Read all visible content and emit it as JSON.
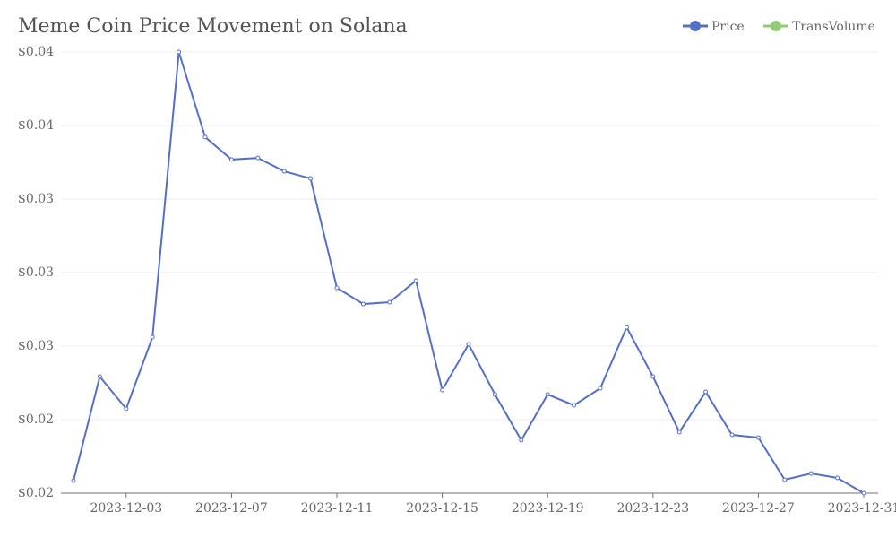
{
  "chart_data": {
    "type": "line",
    "title": "Meme Coin Price Movement on Solana",
    "categories": [
      "2023-12-01",
      "2023-12-02",
      "2023-12-03",
      "2023-12-04",
      "2023-12-05",
      "2023-12-06",
      "2023-12-07",
      "2023-12-08",
      "2023-12-09",
      "2023-12-10",
      "2023-12-11",
      "2023-12-12",
      "2023-12-13",
      "2023-12-14",
      "2023-12-15",
      "2023-12-16",
      "2023-12-17",
      "2023-12-18",
      "2023-12-19",
      "2023-12-20",
      "2023-12-21",
      "2023-12-22",
      "2023-12-23",
      "2023-12-24",
      "2023-12-25",
      "2023-12-26",
      "2023-12-27",
      "2023-12-28",
      "2023-12-29",
      "2023-12-30",
      "2023-12-31"
    ],
    "xticks": [
      "2023-12-03",
      "2023-12-07",
      "2023-12-11",
      "2023-12-15",
      "2023-12-19",
      "2023-12-23",
      "2023-12-27",
      "2023-12-31"
    ],
    "series": [
      {
        "name": "Price",
        "color": "#5470c6",
        "values": [
          0.01868,
          0.02434,
          0.02259,
          0.02649,
          0.042,
          0.03737,
          0.03615,
          0.03624,
          0.03551,
          0.03512,
          0.02917,
          0.02829,
          0.02839,
          0.02956,
          0.02361,
          0.0261,
          0.02337,
          0.02088,
          0.02337,
          0.02278,
          0.02371,
          0.02702,
          0.02434,
          0.02132,
          0.02351,
          0.02117,
          0.02102,
          0.01873,
          0.01907,
          0.01883,
          0.018
        ]
      },
      {
        "name": "TransVolume",
        "color": "#91cc75"
      }
    ],
    "ylim": [
      0.018,
      0.042
    ],
    "yticks": [
      {
        "value": 0.018,
        "label": "$0.02"
      },
      {
        "value": 0.022,
        "label": "$0.02"
      },
      {
        "value": 0.026,
        "label": "$0.03"
      },
      {
        "value": 0.03,
        "label": "$0.03"
      },
      {
        "value": 0.034,
        "label": "$0.03"
      },
      {
        "value": 0.038,
        "label": "$0.04"
      },
      {
        "value": 0.042,
        "label": "$0.04"
      }
    ],
    "grid": true,
    "legend": "top-right"
  }
}
